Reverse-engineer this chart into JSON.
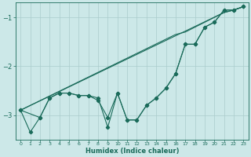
{
  "xlabel": "Humidex (Indice chaleur)",
  "bg_color": "#cce8e8",
  "line_color": "#1a6b5a",
  "grid_color": "#aacccc",
  "xlim": [
    -0.5,
    23.5
  ],
  "ylim": [
    -3.5,
    -0.7
  ],
  "yticks": [
    -3,
    -2,
    -1
  ],
  "xticks": [
    0,
    1,
    2,
    3,
    4,
    5,
    6,
    7,
    8,
    9,
    10,
    11,
    12,
    13,
    14,
    15,
    16,
    17,
    18,
    19,
    20,
    21,
    22,
    23
  ],
  "line1_x": [
    0,
    1,
    2,
    3,
    4,
    5,
    6,
    7,
    8,
    9,
    10,
    11,
    12,
    13,
    14,
    15,
    16,
    17,
    18,
    19,
    20,
    21,
    22,
    23
  ],
  "line1_y": [
    -2.9,
    -3.35,
    -3.05,
    -2.65,
    -2.55,
    -2.55,
    -2.6,
    -2.6,
    -2.7,
    -3.05,
    -2.55,
    -3.1,
    -3.1,
    -2.8,
    -2.65,
    -2.45,
    -2.15,
    -1.55,
    -1.55,
    -1.2,
    -1.1,
    -0.85,
    -0.85,
    -0.78
  ],
  "line2_x": [
    0,
    2,
    3,
    4,
    5,
    6,
    7,
    8,
    9,
    10,
    11,
    12,
    13,
    14,
    15,
    16,
    17,
    18,
    19,
    20,
    21,
    22,
    23
  ],
  "line2_y": [
    -2.9,
    -3.05,
    -2.65,
    -2.55,
    -2.55,
    -2.6,
    -2.6,
    -2.65,
    -3.25,
    -2.55,
    -3.1,
    -3.1,
    -2.8,
    -2.65,
    -2.45,
    -2.15,
    -1.55,
    -1.55,
    -1.2,
    -1.1,
    -0.85,
    -0.85,
    -0.78
  ],
  "line3_x": [
    0,
    21,
    22,
    23
  ],
  "line3_y": [
    -2.9,
    -0.9,
    -0.85,
    -0.78
  ],
  "line4_x": [
    0,
    16,
    17,
    21,
    22,
    23
  ],
  "line4_y": [
    -2.9,
    -1.35,
    -1.3,
    -0.9,
    -0.85,
    -0.78
  ]
}
